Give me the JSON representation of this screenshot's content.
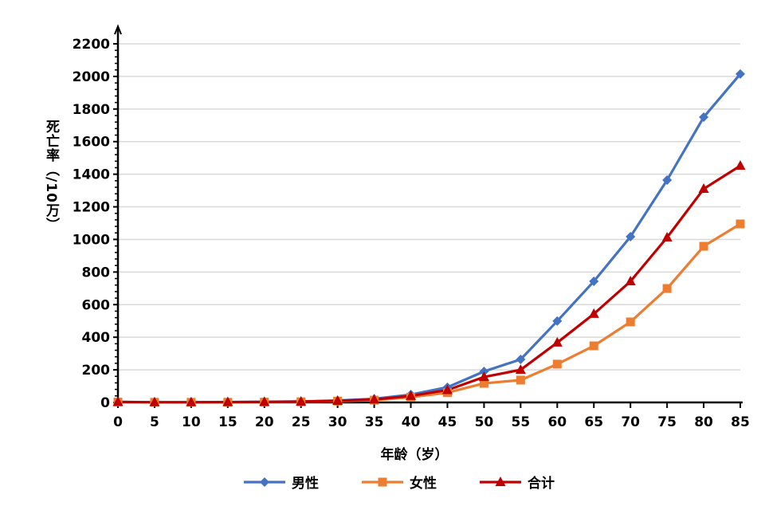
{
  "chart_data": {
    "type": "line",
    "xlabel": "年龄（岁）",
    "ylabel": "死亡率（/10万）",
    "x": [
      0,
      5,
      10,
      15,
      20,
      25,
      30,
      35,
      40,
      45,
      50,
      55,
      60,
      65,
      70,
      75,
      80,
      85
    ],
    "xlim": [
      0,
      85
    ],
    "ylim": [
      0,
      2200
    ],
    "yticks": [
      0,
      200,
      400,
      600,
      800,
      1000,
      1200,
      1400,
      1600,
      1800,
      2000,
      2200
    ],
    "grid": true,
    "legend": "bottom",
    "series": [
      {
        "name": "男性",
        "color": "#4472c4",
        "marker": "diamond",
        "values": [
          3,
          1,
          1,
          2,
          4,
          6,
          12,
          22,
          48,
          93,
          190,
          264,
          499,
          743,
          1017,
          1364,
          1750,
          2015
        ]
      },
      {
        "name": "女性",
        "color": "#ed7d31",
        "marker": "square",
        "values": [
          2,
          1,
          1,
          1,
          2,
          4,
          8,
          14,
          32,
          60,
          117,
          137,
          235,
          347,
          494,
          699,
          958,
          1095
        ]
      },
      {
        "name": "合计",
        "color": "#c00000",
        "marker": "triangle",
        "values": [
          3,
          1,
          1,
          2,
          3,
          5,
          10,
          18,
          40,
          76,
          156,
          200,
          367,
          543,
          743,
          1012,
          1310,
          1452
        ]
      }
    ]
  }
}
